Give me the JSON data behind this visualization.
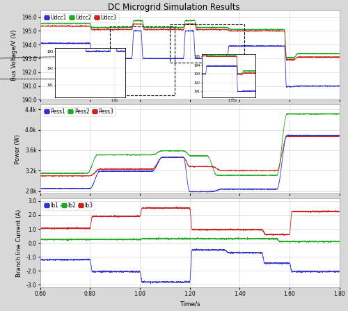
{
  "title": "DC Microgrid Simulation Results",
  "title_fontsize": 8.5,
  "background_color": "#d8d8d8",
  "plot_bg_color": "#ffffff",
  "time_start": 0.6,
  "time_end": 1.8,
  "xticks": [
    0.6,
    0.8,
    1.0,
    1.2,
    1.4,
    1.6,
    1.8
  ],
  "xlabel": "Time/s",
  "subplot1": {
    "ylabel": "Bus Voltage/V (V)",
    "ylim": [
      190.0,
      196.5
    ],
    "yticks": [
      190.0,
      191.0,
      192.0,
      193.0,
      194.0,
      195.0,
      196.0
    ],
    "legend": [
      "Udcc1",
      "Udcc2",
      "Udcc3"
    ],
    "line_colors": [
      "#3333cc",
      "#22aa22",
      "#cc2222"
    ]
  },
  "subplot2": {
    "ylabel": "Power (W)",
    "ylim": [
      2750,
      4500
    ],
    "yticks": [
      2800,
      3200,
      3600,
      4000,
      4400
    ],
    "ytick_labels": [
      "2.8k",
      "3.2k",
      "3.6k",
      "4.0k",
      "4.4k"
    ],
    "legend": [
      "Pess1",
      "Pess2",
      "Pess3"
    ],
    "line_colors": [
      "#3333cc",
      "#22aa22",
      "#cc2222"
    ]
  },
  "subplot3": {
    "ylabel": "Branch line Current (A)",
    "ylim": [
      -3.2,
      3.2
    ],
    "yticks": [
      -3.0,
      -2.0,
      -1.0,
      0.0,
      1.0,
      2.0,
      3.0
    ],
    "legend": [
      "Ib1",
      "Ib2",
      "Ib3"
    ],
    "line_colors": [
      "#3333cc",
      "#22aa22",
      "#cc2222"
    ]
  }
}
